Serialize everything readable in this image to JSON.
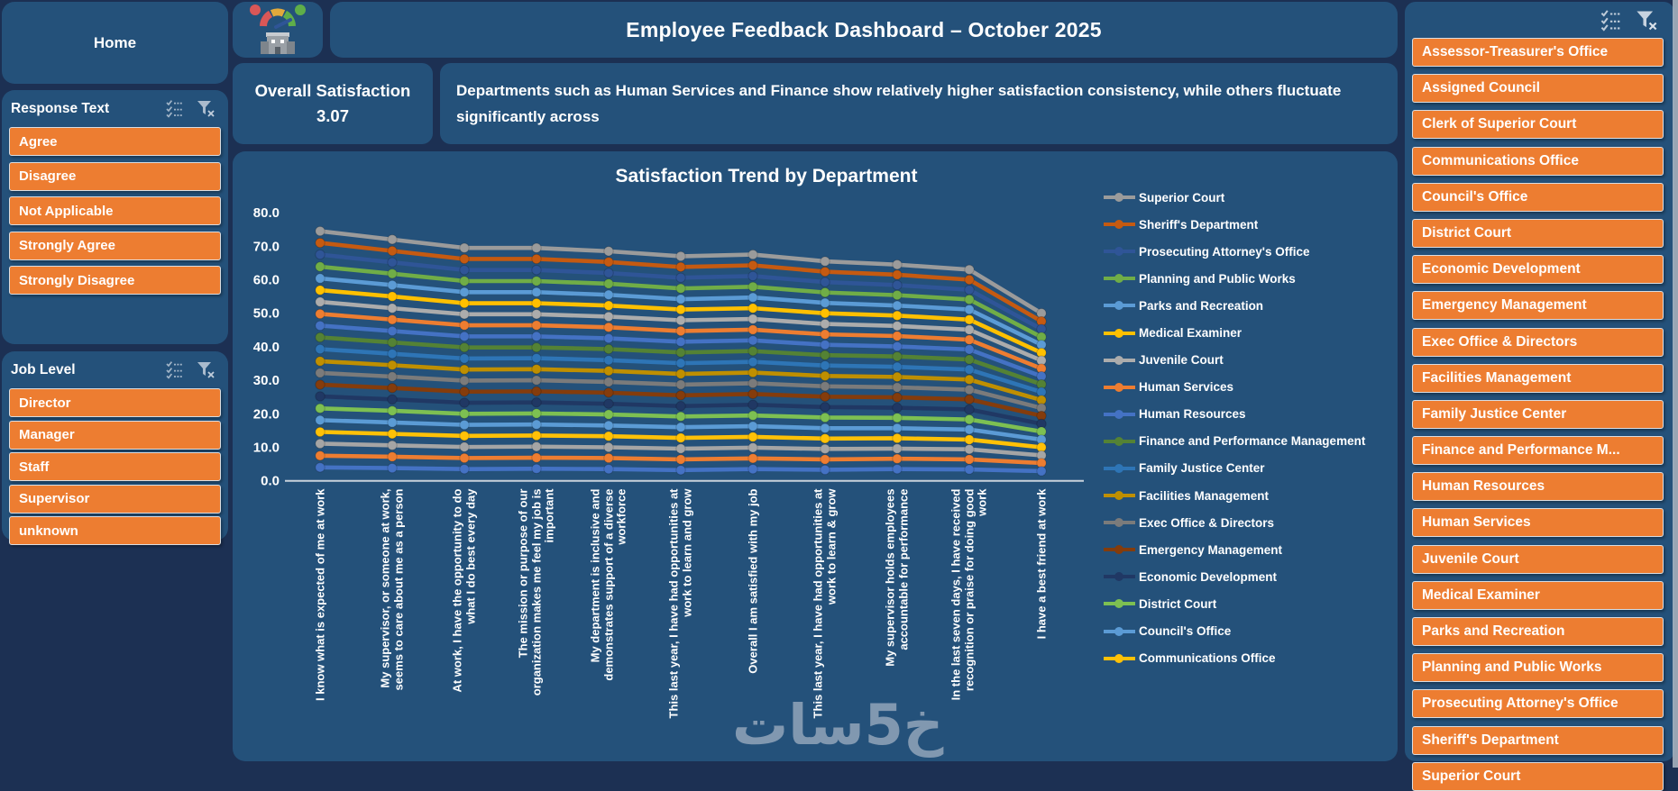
{
  "home": {
    "label": "Home"
  },
  "header": {
    "title": "Employee Feedback Dashboard – October 2025"
  },
  "kpi": {
    "label": "Overall Satisfaction",
    "value": "3.07"
  },
  "insight": {
    "text": "Departments such as Human Services and Finance show relatively higher satisfaction consistency, while others fluctuate significantly across"
  },
  "slicers": {
    "response_text": {
      "title": "Response Text",
      "options": [
        "Agree",
        "Disagree",
        "Not Applicable",
        "Strongly Agree",
        "Strongly Disagree"
      ]
    },
    "job_level": {
      "title": "Job Level",
      "options": [
        "Director",
        "Manager",
        "Staff",
        "Supervisor",
        "unknown"
      ]
    },
    "department": {
      "options": [
        "Assessor-Treasurer's Office",
        "Assigned Council",
        "Clerk of Superior Court",
        "Communications Office",
        "Council's Office",
        "District Court",
        "Economic Development",
        "Emergency Management",
        "Exec Office & Directors",
        "Facilities Management",
        "Family Justice Center",
        "Finance and Performance M...",
        "Human Resources",
        "Human Services",
        "Juvenile Court",
        "Medical Examiner",
        "Parks and Recreation",
        "Planning and Public Works",
        "Prosecuting Attorney's Office",
        "Sheriff's Department",
        "Superior Court"
      ]
    }
  },
  "icons": {
    "multi_select": "multi-select-checklist-icon",
    "clear_filter": "clear-filter-funnel-icon",
    "logo": "satisfaction-gauge-building-logo"
  },
  "colors": {
    "page_bg": "#1C3053",
    "card_bg": "#24517A",
    "button_orange": "#ED7D31",
    "text": "#FFFFFF",
    "axis_line": "#C9D2DC"
  },
  "watermark": {
    "text": "خ5سات"
  },
  "chart_data": {
    "type": "line",
    "title": "Satisfaction Trend by Department",
    "xlabel": "",
    "ylabel": "",
    "ylim": [
      0,
      80
    ],
    "ytick_step": 10,
    "grid": false,
    "legend_position": "right",
    "legend_visible_count": 18,
    "categories": [
      "I know what is expected of me at work",
      "My supervisor, or someone at work, seems to care about me as a person",
      "At work, I have the opportunity to do what I do best every day",
      "The mission or purpose of our organization makes me feel my job is important",
      "My department is inclusive and demonstrates support of a diverse workforce",
      "This last year, I have had opportunities at work to learn and grow",
      "Overall I am satisfied with my job",
      "This last year, I have had opportunities at work to learn & grow",
      "My supervisor holds employees accountable for performance",
      "In the last seven days, I have received recognition or praise for doing good work",
      "I have a best friend at work"
    ],
    "series": [
      {
        "name": "Superior Court",
        "color": "#9B9B9B",
        "values": [
          74.5,
          72.0,
          69.5,
          69.5,
          68.5,
          67.0,
          67.5,
          65.5,
          64.5,
          63.0,
          50.0
        ]
      },
      {
        "name": "Sheriff's Department",
        "color": "#C55A11",
        "values": [
          71.0,
          68.6,
          66.2,
          66.2,
          65.3,
          63.8,
          64.3,
          62.4,
          61.5,
          60.0,
          47.6
        ]
      },
      {
        "name": "Prosecuting Attorney's Office",
        "color": "#2F5597",
        "values": [
          67.5,
          65.2,
          62.9,
          62.9,
          62.0,
          60.6,
          61.1,
          59.3,
          58.4,
          57.0,
          45.3
        ]
      },
      {
        "name": "Planning and Public Works",
        "color": "#70AD47",
        "values": [
          63.9,
          61.8,
          59.6,
          59.6,
          58.8,
          57.4,
          57.9,
          56.2,
          55.4,
          54.1,
          42.9
        ]
      },
      {
        "name": "Parks and Recreation",
        "color": "#5B9BD5",
        "values": [
          60.4,
          58.4,
          56.3,
          56.3,
          55.5,
          54.2,
          54.7,
          53.1,
          52.3,
          51.1,
          40.6
        ]
      },
      {
        "name": "Medical Examiner",
        "color": "#FFC000",
        "values": [
          56.9,
          55.0,
          53.0,
          53.0,
          52.3,
          51.1,
          51.5,
          50.0,
          49.3,
          48.1,
          38.2
        ]
      },
      {
        "name": "Juvenile Court",
        "color": "#ACACAC",
        "values": [
          53.4,
          51.5,
          49.7,
          49.7,
          49.0,
          47.9,
          48.3,
          46.8,
          46.2,
          45.1,
          35.9
        ]
      },
      {
        "name": "Human Services",
        "color": "#ED7D31",
        "values": [
          49.8,
          48.1,
          46.4,
          46.4,
          45.8,
          44.7,
          45.1,
          43.7,
          43.2,
          42.1,
          33.5
        ]
      },
      {
        "name": "Human Resources",
        "color": "#4472C4",
        "values": [
          46.3,
          44.7,
          43.1,
          43.1,
          42.5,
          41.5,
          41.9,
          40.6,
          40.1,
          39.2,
          31.2
        ]
      },
      {
        "name": "Finance and Performance Management",
        "color": "#548235",
        "values": [
          42.8,
          41.3,
          39.8,
          39.8,
          39.3,
          38.3,
          38.7,
          37.5,
          37.1,
          36.2,
          28.8
        ]
      },
      {
        "name": "Family Justice Center",
        "color": "#2E75B6",
        "values": [
          39.3,
          37.9,
          36.5,
          36.6,
          36.0,
          35.1,
          35.5,
          34.4,
          34.0,
          33.2,
          26.5
        ]
      },
      {
        "name": "Facilities Management",
        "color": "#BF8F00",
        "values": [
          35.7,
          34.5,
          33.2,
          33.3,
          32.8,
          31.9,
          32.3,
          31.3,
          31.0,
          30.2,
          24.1
        ]
      },
      {
        "name": "Exec Office & Directors",
        "color": "#7B7B7B",
        "values": [
          32.2,
          31.1,
          29.9,
          30.0,
          29.5,
          28.7,
          29.1,
          28.2,
          27.9,
          27.2,
          21.7
        ]
      },
      {
        "name": "Emergency Management",
        "color": "#843C0C",
        "values": [
          28.7,
          27.7,
          26.6,
          26.7,
          26.3,
          25.5,
          25.9,
          25.1,
          24.9,
          24.3,
          19.4
        ]
      },
      {
        "name": "Economic Development",
        "color": "#203864",
        "values": [
          25.2,
          24.3,
          23.3,
          23.4,
          23.0,
          22.3,
          22.7,
          22.0,
          21.8,
          21.3,
          17.0
        ]
      },
      {
        "name": "District Court",
        "color": "#7DC052",
        "values": [
          21.6,
          20.9,
          20.0,
          20.1,
          19.8,
          19.2,
          19.5,
          18.9,
          18.8,
          18.3,
          14.7
        ]
      },
      {
        "name": "Council's Office",
        "color": "#5B9BD5",
        "values": [
          18.1,
          17.4,
          16.7,
          16.8,
          16.5,
          16.0,
          16.3,
          15.7,
          15.7,
          15.3,
          12.3
        ]
      },
      {
        "name": "Communications Office",
        "color": "#FFC107",
        "values": [
          14.6,
          14.0,
          13.4,
          13.5,
          13.3,
          12.8,
          13.1,
          12.6,
          12.7,
          12.3,
          10.0
        ]
      },
      {
        "name": "Clerk of Superior Court",
        "color": "#A5A5A5",
        "values": [
          11.1,
          10.6,
          10.1,
          10.2,
          10.0,
          9.6,
          9.9,
          9.5,
          9.6,
          9.4,
          7.6
        ]
      },
      {
        "name": "Assigned Council",
        "color": "#ED7D31",
        "values": [
          7.5,
          7.2,
          6.8,
          6.9,
          6.8,
          6.4,
          6.7,
          6.4,
          6.6,
          6.4,
          5.3
        ]
      },
      {
        "name": "Assessor-Treasurer's Office",
        "color": "#4472C4",
        "values": [
          4.0,
          3.8,
          3.5,
          3.6,
          3.5,
          3.2,
          3.5,
          3.3,
          3.5,
          3.4,
          2.9
        ]
      }
    ]
  }
}
